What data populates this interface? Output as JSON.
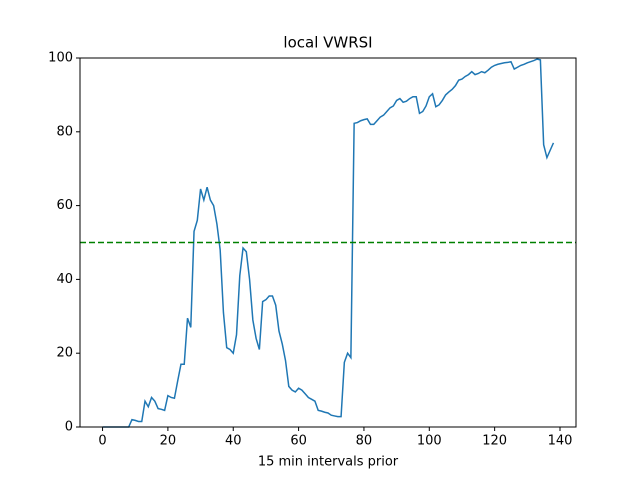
{
  "chart_data": {
    "type": "line",
    "title": "local VWRSI",
    "xlabel": "15 min intervals prior",
    "x": [
      0,
      1,
      2,
      3,
      4,
      5,
      6,
      7,
      8,
      9,
      10,
      11,
      12,
      13,
      14,
      15,
      16,
      17,
      18,
      19,
      20,
      21,
      22,
      23,
      24,
      25,
      26,
      27,
      28,
      29,
      30,
      31,
      32,
      33,
      34,
      35,
      36,
      37,
      38,
      39,
      40,
      41,
      42,
      43,
      44,
      45,
      46,
      47,
      48,
      49,
      50,
      51,
      52,
      53,
      54,
      55,
      56,
      57,
      58,
      59,
      60,
      61,
      62,
      63,
      64,
      65,
      66,
      67,
      68,
      69,
      70,
      71,
      72,
      73,
      74,
      75,
      76,
      77,
      78,
      79,
      80,
      81,
      82,
      83,
      84,
      85,
      86,
      87,
      88,
      89,
      90,
      91,
      92,
      93,
      94,
      95,
      96,
      97,
      98,
      99,
      100,
      101,
      102,
      103,
      104,
      105,
      106,
      107,
      108,
      109,
      110,
      111,
      112,
      113,
      114,
      115,
      116,
      117,
      118,
      119,
      120,
      121,
      122,
      123,
      124,
      125,
      126,
      127,
      128,
      129,
      130,
      131,
      132,
      133,
      134,
      135,
      136,
      137,
      138
    ],
    "series": [
      {
        "name": "local VWRSI",
        "color": "#1f77b4",
        "values": [
          0,
          0,
          0,
          0,
          0,
          0,
          0,
          0,
          0,
          2,
          1.8,
          1.5,
          1.5,
          7,
          5.5,
          8,
          7,
          5,
          4.8,
          4.5,
          8.5,
          8,
          7.8,
          12.5,
          17,
          17,
          29.5,
          27,
          53,
          56,
          64.5,
          61.5,
          65,
          61.5,
          60,
          55,
          48,
          31,
          21.5,
          21,
          20,
          25,
          41,
          48.5,
          47.5,
          40,
          29,
          24,
          21,
          34,
          34.5,
          35.5,
          35.5,
          33,
          26,
          22.5,
          18,
          11,
          10,
          9.5,
          10.5,
          10,
          9,
          8,
          7.5,
          7,
          4.5,
          4.3,
          4,
          3.8,
          3.2,
          3,
          2.8,
          2.8,
          17.5,
          20,
          18.8,
          82.3,
          82.5,
          83,
          83.3,
          83.5,
          82,
          82,
          83,
          84,
          84.5,
          85.5,
          86.5,
          87,
          88.5,
          89,
          88,
          88.3,
          89,
          89.5,
          89.5,
          85,
          85.5,
          87,
          89.5,
          90.3,
          86.8,
          87.3,
          88.5,
          90,
          90.8,
          91.5,
          92.5,
          94,
          94.3,
          95,
          95.5,
          96.3,
          95.5,
          95.8,
          96.3,
          96,
          96.7,
          97.5,
          98,
          98.3,
          98.5,
          98.7,
          98.8,
          99,
          97,
          97.5,
          98,
          98.3,
          98.7,
          99,
          99.3,
          99.7,
          99.5,
          76.5,
          73,
          75,
          77
        ]
      }
    ],
    "reference_line": {
      "value": 50,
      "color": "green",
      "style": "dashed"
    },
    "xlim": [
      -6.9,
      144.9
    ],
    "xticks": [
      0,
      20,
      40,
      60,
      80,
      100,
      120,
      140
    ],
    "ylim": [
      0,
      100
    ],
    "yticks": [
      0,
      20,
      40,
      60,
      80,
      100
    ]
  }
}
